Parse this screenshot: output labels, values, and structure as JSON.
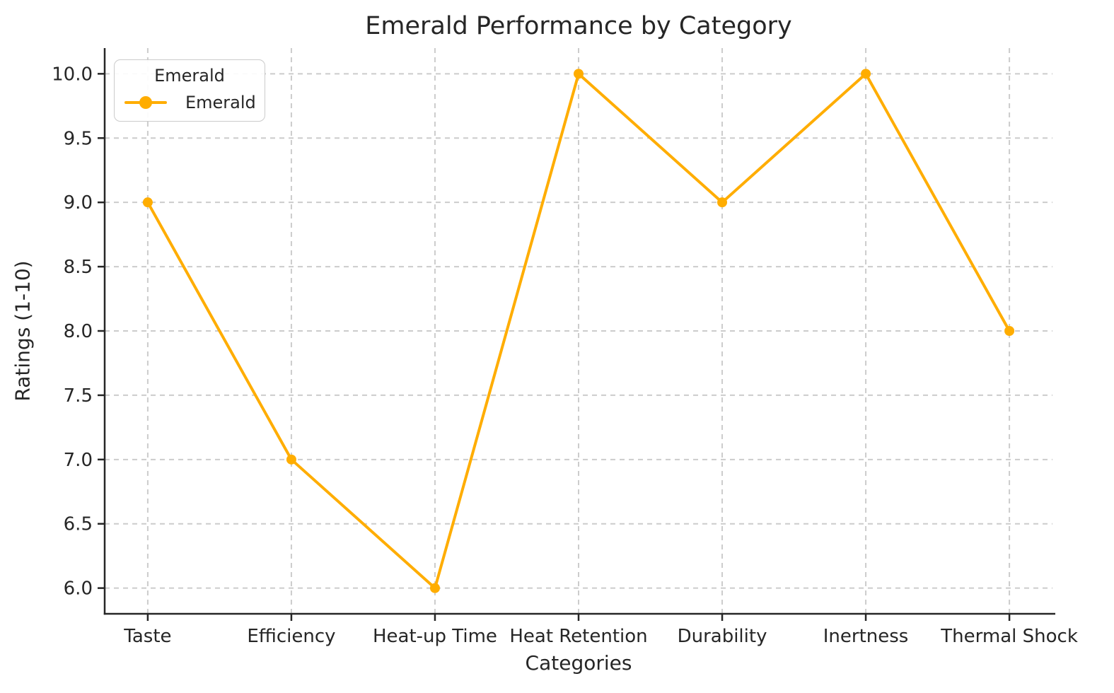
{
  "chart_data": {
    "type": "line",
    "title": "Emerald Performance by Category",
    "xlabel": "Categories",
    "ylabel": "Ratings (1-10)",
    "categories": [
      "Taste",
      "Efficiency",
      "Heat-up Time",
      "Heat Retention",
      "Durability",
      "Inertness",
      "Thermal Shock"
    ],
    "series": [
      {
        "name": "Emerald",
        "values": [
          9,
          7,
          6,
          10,
          9,
          10,
          8
        ],
        "color": "#FFAD00",
        "marker": "circle"
      }
    ],
    "legend": {
      "title": "Emerald",
      "entries": [
        "Emerald"
      ],
      "position": "upper left"
    },
    "y_ticks": [
      6.0,
      6.5,
      7.0,
      7.5,
      8.0,
      8.5,
      9.0,
      9.5,
      10.0
    ],
    "y_tick_labels": [
      "6.0",
      "6.5",
      "7.0",
      "7.5",
      "8.0",
      "8.5",
      "9.0",
      "9.5",
      "10.0"
    ],
    "ylim": [
      5.8,
      10.2
    ],
    "grid": true,
    "grid_style": "dashed",
    "colors": {
      "line": "#FFAD00",
      "text": "#262626",
      "grid": "#cccccc",
      "spine": "#262626",
      "background": "#ffffff"
    }
  }
}
